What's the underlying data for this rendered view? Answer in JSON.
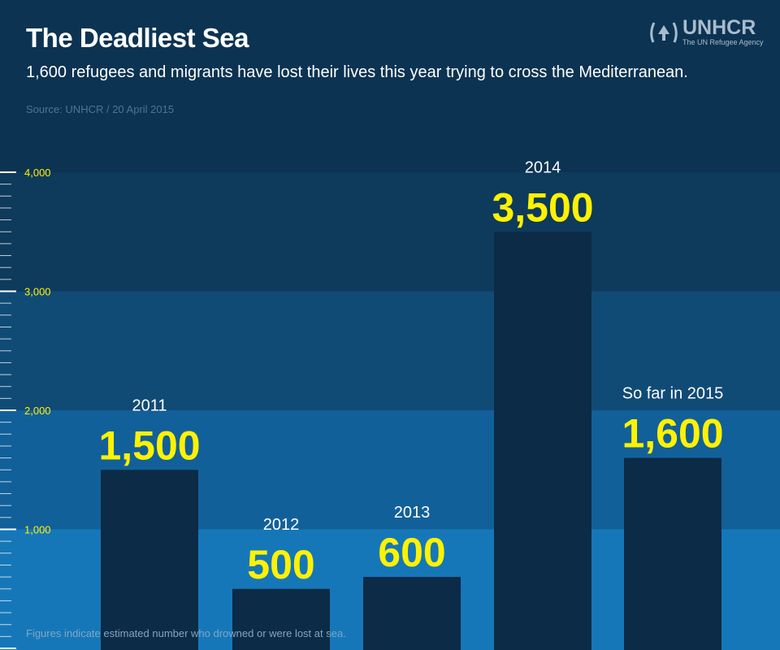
{
  "header": {
    "title": "The Deadliest Sea",
    "subtitle": "1,600 refugees and migrants have lost their lives this year trying to cross the Mediterranean.",
    "source": "Source: UNHCR / 20 April 2015"
  },
  "logo": {
    "name": "UNHCR",
    "tagline": "The UN Refugee Agency",
    "emblem_icon": "laurel-hands-shelter-icon"
  },
  "footnote": "Figures indicate estimated number who drowned or were lost at sea.",
  "colors": {
    "background_top": "#0c3352",
    "band_3000_4000": "#0e3a5c",
    "band_2000_3000": "#104b76",
    "band_1000_2000": "#12609a",
    "band_0_1000": "#1677b8",
    "bar": "#0b2b46",
    "value_text": "#fff200",
    "tick_label": "#fff200"
  },
  "chart_data": {
    "type": "bar",
    "categories": [
      "2011",
      "2012",
      "2013",
      "2014",
      "So far in 2015"
    ],
    "values": [
      1500,
      500,
      600,
      3500,
      1600
    ],
    "value_labels": [
      "1,500",
      "500",
      "600",
      "3,500",
      "1,600"
    ],
    "title": "The Deadliest Sea",
    "xlabel": "",
    "ylabel": "",
    "ylim": [
      0,
      4000
    ],
    "yticks": [
      1000,
      2000,
      3000,
      4000
    ],
    "ytick_labels": [
      "1,000",
      "2,000",
      "3,000",
      "4,000"
    ],
    "grid": false,
    "legend": "none"
  }
}
